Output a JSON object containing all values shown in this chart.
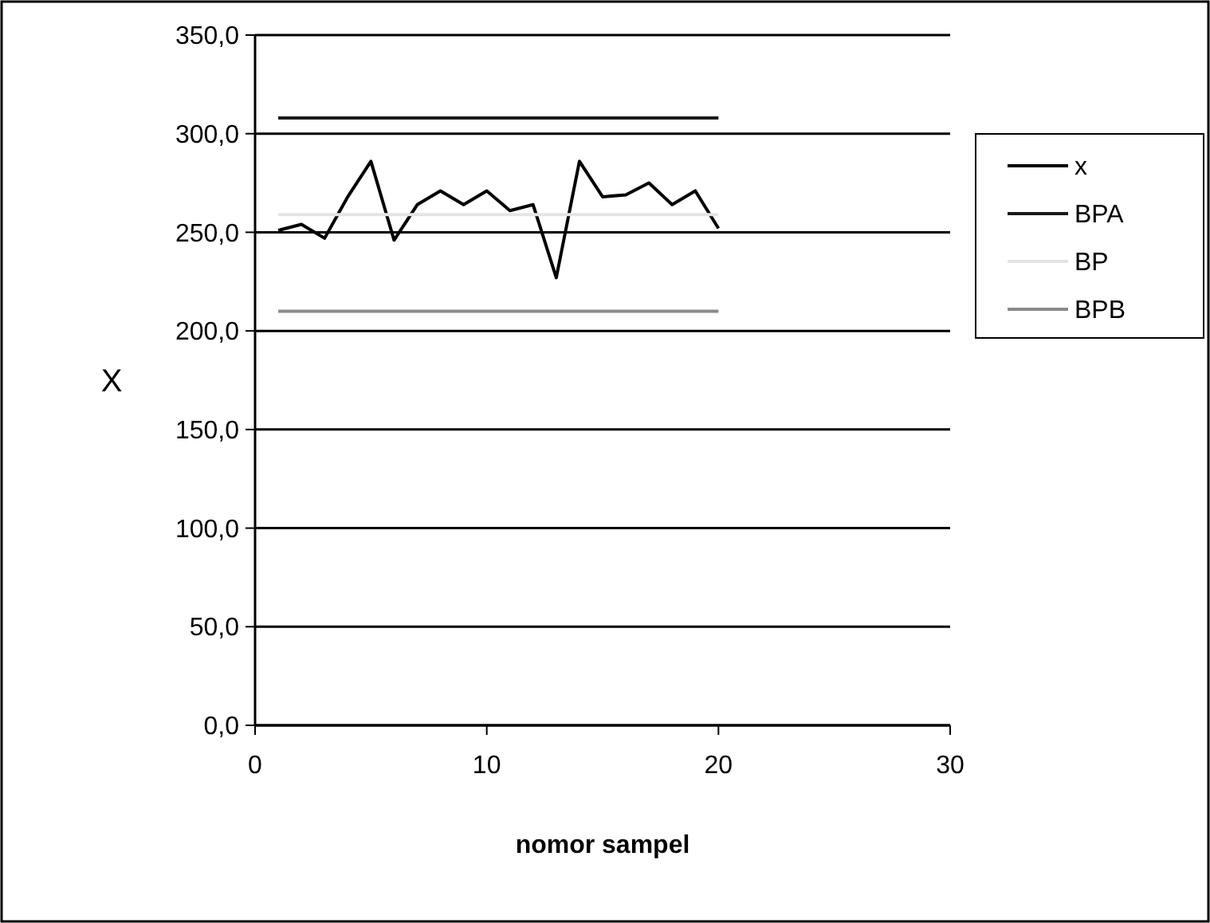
{
  "chart_data": {
    "type": "line",
    "xlabel": "nomor sampel",
    "ylabel": "X",
    "xlim": [
      0,
      30
    ],
    "xticks": [
      0,
      10,
      20,
      30
    ],
    "ylim": [
      0,
      350
    ],
    "yticks": [
      {
        "value": 0,
        "label": "0,0"
      },
      {
        "value": 50,
        "label": "50,0"
      },
      {
        "value": 100,
        "label": "100,0"
      },
      {
        "value": 150,
        "label": "150,0"
      },
      {
        "value": 200,
        "label": "200,0"
      },
      {
        "value": 250,
        "label": "250,0"
      },
      {
        "value": 300,
        "label": "300,0"
      },
      {
        "value": 350,
        "label": "350,0"
      }
    ],
    "grid": "y",
    "legend": "right",
    "marker": "none",
    "x": [
      1,
      2,
      3,
      4,
      5,
      6,
      7,
      8,
      9,
      10,
      11,
      12,
      13,
      14,
      15,
      16,
      17,
      18,
      19,
      20
    ],
    "series": [
      {
        "name": "x",
        "color": "#000000",
        "values": [
          251,
          254,
          247,
          268,
          286,
          246,
          264,
          271,
          264,
          271,
          261,
          264,
          227,
          286,
          268,
          269,
          275,
          264,
          271,
          252
        ]
      },
      {
        "name": "BPA",
        "color": "#1a1a1a",
        "values": [
          308,
          308,
          308,
          308,
          308,
          308,
          308,
          308,
          308,
          308,
          308,
          308,
          308,
          308,
          308,
          308,
          308,
          308,
          308,
          308
        ]
      },
      {
        "name": "BP",
        "color": "#e4e4e4",
        "values": [
          259,
          259,
          259,
          259,
          259,
          259,
          259,
          259,
          259,
          259,
          259,
          259,
          259,
          259,
          259,
          259,
          259,
          259,
          259,
          259
        ]
      },
      {
        "name": "BPB",
        "color": "#8a8a8a",
        "values": [
          210,
          210,
          210,
          210,
          210,
          210,
          210,
          210,
          210,
          210,
          210,
          210,
          210,
          210,
          210,
          210,
          210,
          210,
          210,
          210
        ]
      }
    ]
  }
}
